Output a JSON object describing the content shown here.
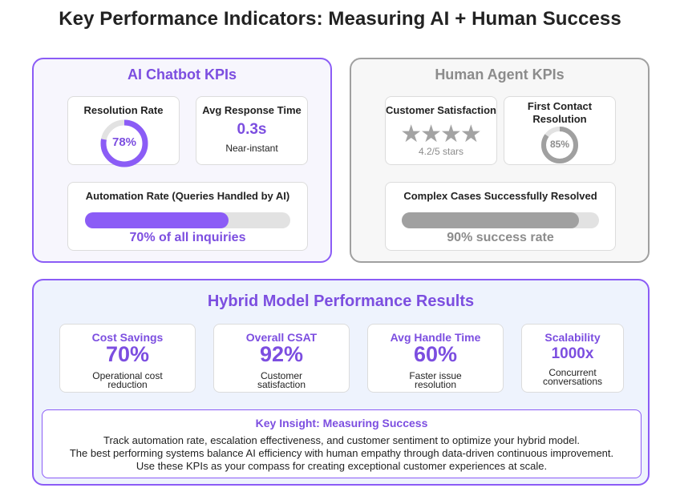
{
  "title": "Key Performance Indicators: Measuring AI + Human Success",
  "ai": {
    "title": "AI Chatbot KPIs",
    "resolution_rate": {
      "label": "Resolution Rate",
      "value_text": "78%",
      "value": 0.78
    },
    "response_time": {
      "label": "Avg Response Time",
      "value": "0.3s",
      "sub": "Near-instant"
    },
    "automation": {
      "label": "Automation Rate (Queries Handled by AI)",
      "value": 0.7,
      "caption": "70% of all inquiries"
    }
  },
  "human": {
    "title": "Human Agent KPIs",
    "csat": {
      "label": "Customer Satisfaction",
      "stars": 4,
      "caption": "4.2/5 stars"
    },
    "fcr": {
      "label_line1": "First Contact",
      "label_line2": "Resolution",
      "value_text": "85%",
      "value": 0.85
    },
    "complex": {
      "label": "Complex Cases Successfully Resolved",
      "value": 0.9,
      "caption": "90% success rate"
    }
  },
  "hybrid": {
    "title": "Hybrid Model Performance Results",
    "cards": [
      {
        "label": "Cost Savings",
        "value": "70%",
        "desc1": "Operational cost",
        "desc2": "reduction"
      },
      {
        "label": "Overall CSAT",
        "value": "92%",
        "desc1": "Customer",
        "desc2": "satisfaction"
      },
      {
        "label": "Avg Handle Time",
        "value": "60%",
        "desc1": "Faster issue",
        "desc2": "resolution"
      },
      {
        "label": "Scalability",
        "value": "1000x",
        "desc1": "Concurrent",
        "desc2": "conversations"
      }
    ],
    "insight": {
      "title": "Key Insight: Measuring Success",
      "lines": [
        "Track automation rate, escalation effectiveness, and customer sentiment to optimize your hybrid model.",
        "The best performing systems balance AI efficiency with human empathy through data-driven continuous improvement.",
        "Use these KPIs as your compass for creating exceptional customer experiences at scale."
      ]
    }
  },
  "colors": {
    "purple": "#8b5cf6",
    "purple_text": "#7c4ee0",
    "gray": "#a0a0a0",
    "track": "#e2e2e2"
  }
}
